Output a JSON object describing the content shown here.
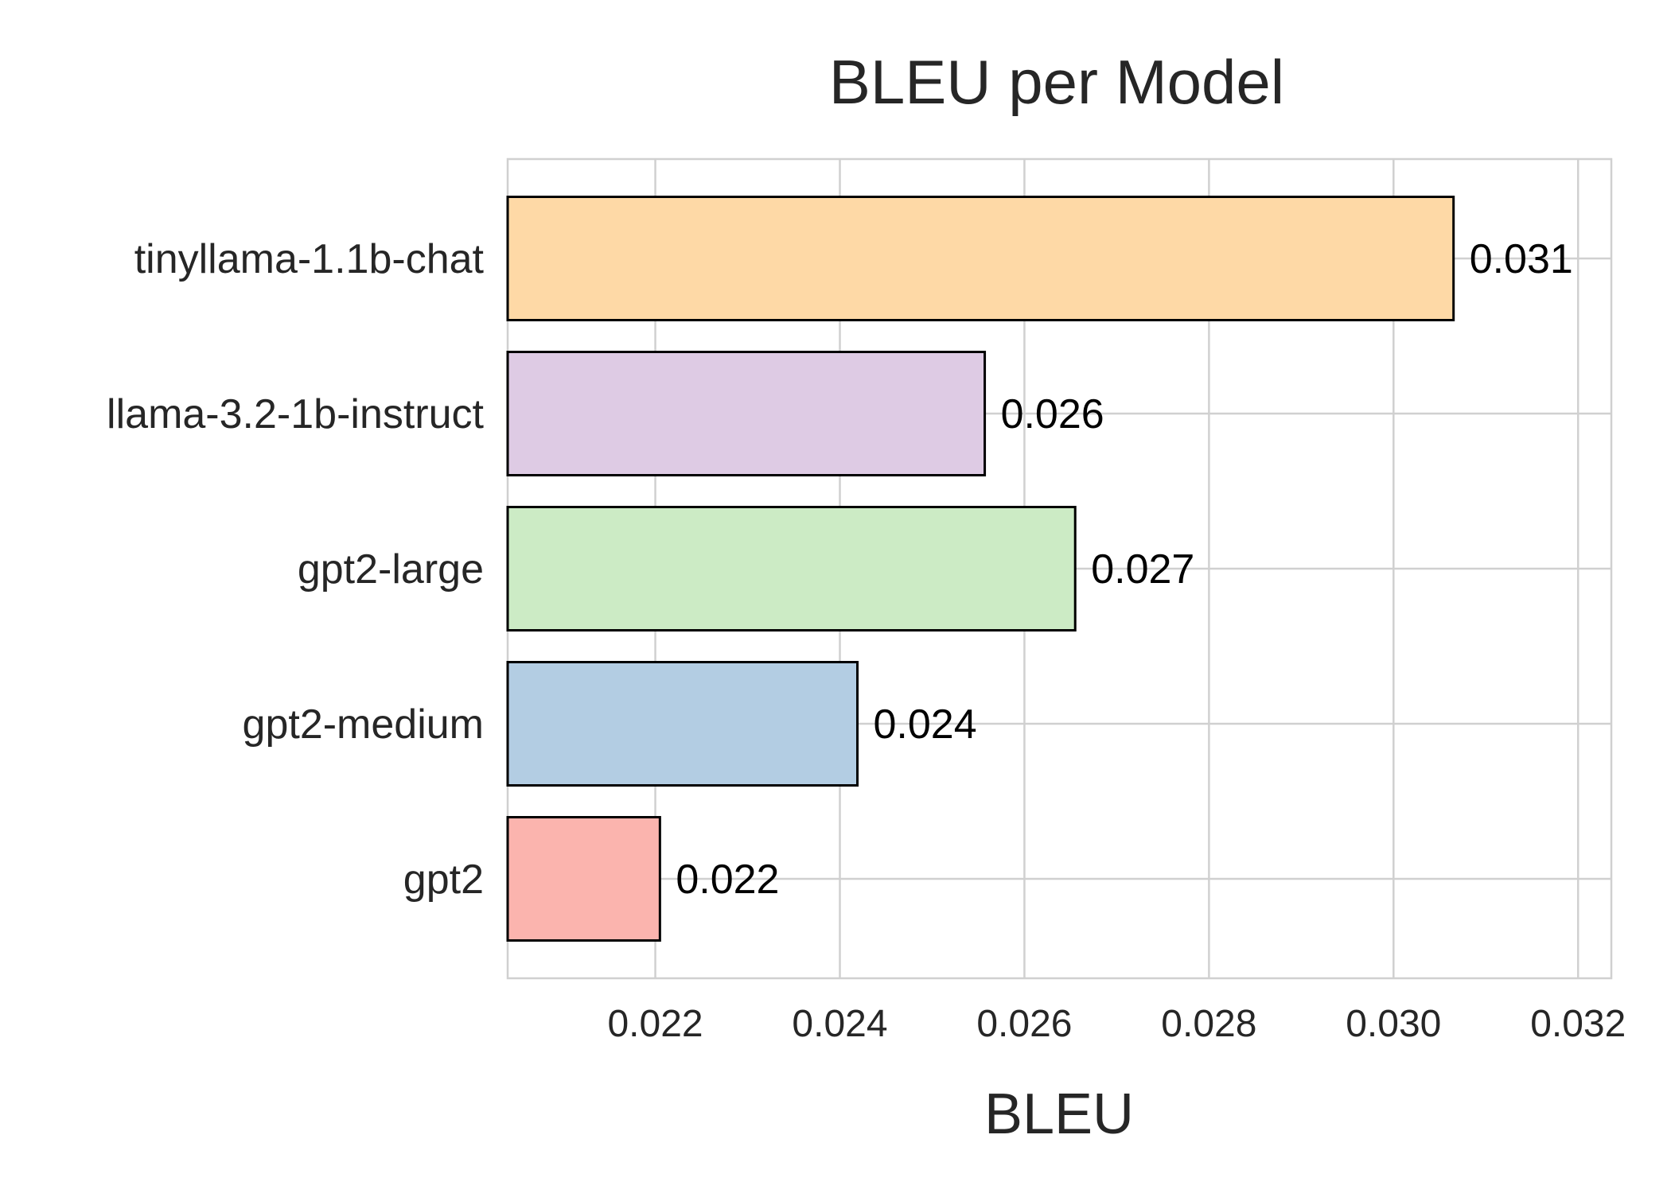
{
  "chart_data": {
    "type": "bar",
    "orientation": "horizontal",
    "title": "BLEU per Model",
    "xlabel": "BLEU",
    "ylabel": "",
    "categories": [
      "tinyllama-1.1b-chat",
      "llama-3.2-1b-instruct",
      "gpt2-large",
      "gpt2-medium",
      "gpt2"
    ],
    "values": [
      0.03065,
      0.02557,
      0.02655,
      0.02419,
      0.02205
    ],
    "value_labels": [
      "0.031",
      "0.026",
      "0.027",
      "0.024",
      "0.022"
    ],
    "colors": [
      "#fed9a6",
      "#decbe4",
      "#ccebc5",
      "#b3cde3",
      "#fbb4ae"
    ],
    "xlim": [
      0.0204,
      0.03236
    ],
    "xticks": [
      0.022,
      0.024,
      0.026,
      0.028,
      0.03,
      0.032
    ],
    "xtick_labels": [
      "0.022",
      "0.024",
      "0.026",
      "0.028",
      "0.030",
      "0.032"
    ],
    "grid": true,
    "legend": "none"
  }
}
